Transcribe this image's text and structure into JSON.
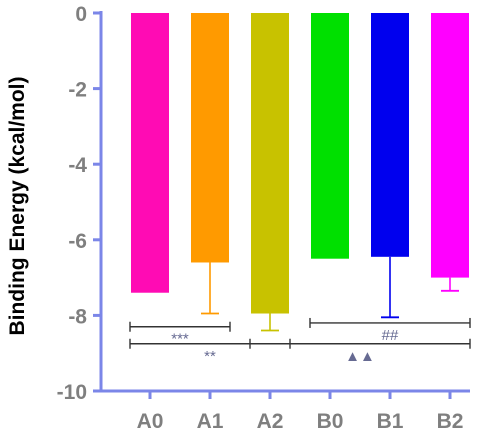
{
  "chart_data": {
    "type": "bar",
    "ylabel": "Binding Energy (kcal/mol)",
    "xlabel": "",
    "title": "",
    "categories": [
      "A0",
      "A1",
      "A2",
      "B0",
      "B1",
      "B2"
    ],
    "values": [
      -7.4,
      -6.6,
      -7.95,
      -6.5,
      -6.45,
      -7.0
    ],
    "error_lower": [
      null,
      -7.95,
      -8.4,
      null,
      -8.05,
      -7.35
    ],
    "colors": [
      "#ff0bb4",
      "#ff9a00",
      "#c8c200",
      "#00e000",
      "#0000ee",
      "#ff00ff"
    ],
    "ylim": [
      -10,
      0
    ],
    "yticks": [
      0,
      -2,
      -4,
      -6,
      -8,
      -10
    ],
    "ytick_labels": [
      "0",
      "-2",
      "-4",
      "-6",
      "-8",
      "-10"
    ],
    "grid": false,
    "axis_color": "#7b86e8",
    "significance": [
      {
        "from": "A0",
        "to": "A1",
        "y": -8.3,
        "label": "***"
      },
      {
        "from": "A0",
        "to": "A2",
        "y": -8.75,
        "label": "**"
      },
      {
        "from": "B0",
        "to": "B2",
        "y": -8.2,
        "label": "##"
      },
      {
        "from": "A2",
        "to": "B2",
        "y": -8.75,
        "label": "▲▲"
      }
    ]
  }
}
